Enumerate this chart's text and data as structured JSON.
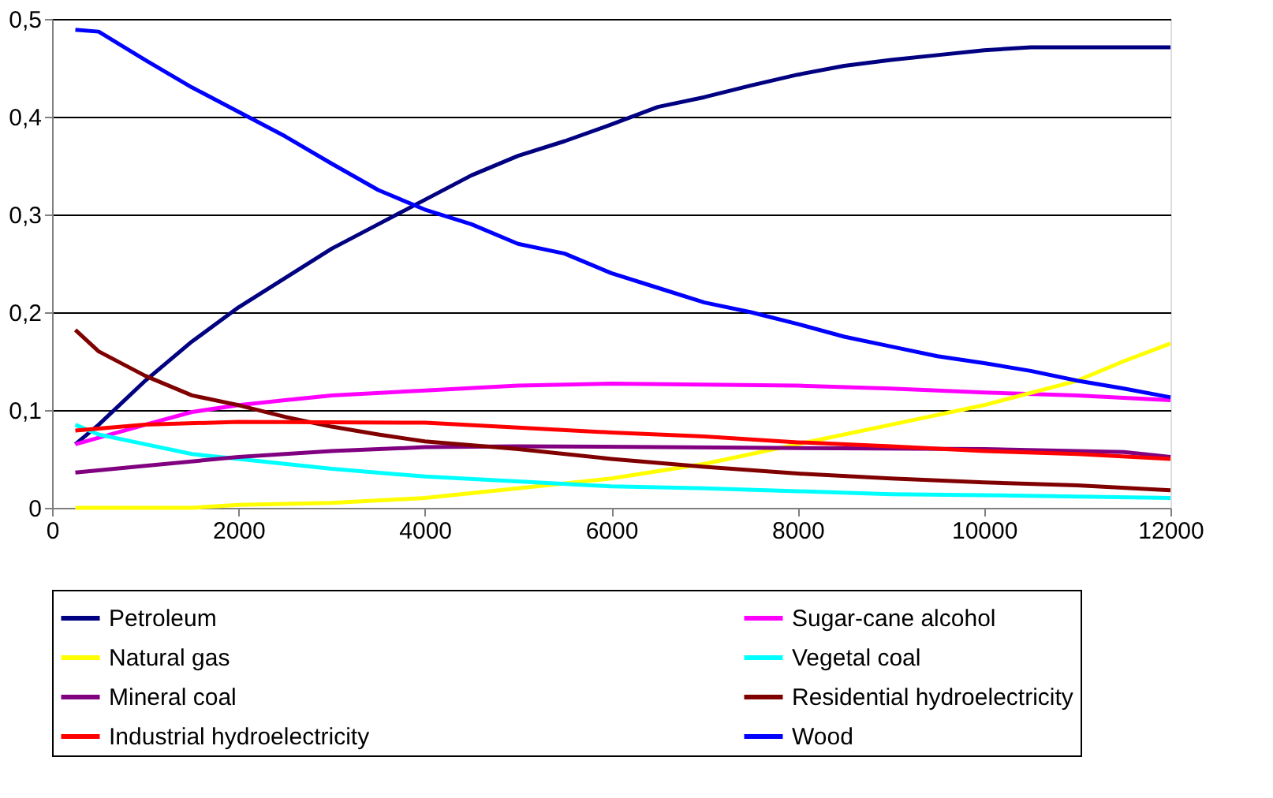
{
  "chart_data": {
    "type": "line",
    "xlim": [
      0,
      12000
    ],
    "xticks": [
      0,
      2000,
      4000,
      6000,
      8000,
      10000,
      12000
    ],
    "ylim": [
      0,
      0.5
    ],
    "yticks": [
      {
        "value": 0,
        "label": "0"
      },
      {
        "value": 0.1,
        "label": "0,1"
      },
      {
        "value": 0.2,
        "label": "0,2"
      },
      {
        "value": 0.3,
        "label": "0,3"
      },
      {
        "value": 0.4,
        "label": "0,4"
      },
      {
        "value": 0.5,
        "label": "0,5"
      }
    ],
    "grid": "y",
    "legend": "bottom",
    "marker": "none",
    "line_style": "solid",
    "series": [
      {
        "name": "Petroleum",
        "color": "#000080",
        "x": [
          250,
          500,
          1000,
          1500,
          2000,
          2500,
          3000,
          3500,
          4000,
          4500,
          5000,
          5500,
          6000,
          6500,
          7000,
          7500,
          8000,
          8500,
          9000,
          9500,
          10000,
          10500,
          11000,
          12000
        ],
        "values": [
          0.065,
          0.085,
          0.13,
          0.17,
          0.205,
          0.235,
          0.265,
          0.29,
          0.315,
          0.34,
          0.36,
          0.375,
          0.392,
          0.41,
          0.42,
          0.432,
          0.443,
          0.452,
          0.458,
          0.463,
          0.468,
          0.471,
          0.471,
          0.471
        ]
      },
      {
        "name": "Sugar-cane alcohol",
        "color": "#ff00ff",
        "x": [
          250,
          1000,
          1500,
          2000,
          2500,
          3000,
          4000,
          5000,
          6000,
          8000,
          9000,
          10000,
          11000,
          12000
        ],
        "values": [
          0.065,
          0.085,
          0.098,
          0.105,
          0.11,
          0.115,
          0.12,
          0.125,
          0.127,
          0.125,
          0.122,
          0.118,
          0.115,
          0.11
        ]
      },
      {
        "name": "Natural gas",
        "color": "#ffff00",
        "x": [
          250,
          1500,
          2000,
          3000,
          4000,
          5000,
          6000,
          7000,
          8000,
          9000,
          10000,
          11000,
          11500,
          12000
        ],
        "values": [
          0,
          0,
          0.003,
          0.005,
          0.01,
          0.02,
          0.03,
          0.045,
          0.065,
          0.085,
          0.105,
          0.13,
          0.15,
          0.168
        ]
      },
      {
        "name": "Vegetal coal",
        "color": "#00ffff",
        "x": [
          250,
          500,
          1000,
          1500,
          2000,
          3000,
          4000,
          5000,
          6000,
          7000,
          8000,
          9000,
          10000,
          12000
        ],
        "values": [
          0.085,
          0.075,
          0.065,
          0.055,
          0.05,
          0.04,
          0.032,
          0.027,
          0.022,
          0.02,
          0.017,
          0.014,
          0.013,
          0.01
        ]
      },
      {
        "name": "Mineral coal",
        "color": "#800080",
        "x": [
          250,
          1000,
          2000,
          3000,
          4000,
          5000,
          10000,
          11500,
          12000
        ],
        "values": [
          0.036,
          0.043,
          0.052,
          0.058,
          0.062,
          0.063,
          0.06,
          0.057,
          0.052
        ]
      },
      {
        "name": "Residential hydroelectricity",
        "color": "#800000",
        "x": [
          250,
          500,
          1000,
          1500,
          2000,
          2500,
          3000,
          3500,
          4000,
          5000,
          6000,
          7000,
          8000,
          9000,
          10000,
          11000,
          12000
        ],
        "values": [
          0.182,
          0.16,
          0.135,
          0.115,
          0.105,
          0.093,
          0.083,
          0.075,
          0.068,
          0.06,
          0.05,
          0.042,
          0.035,
          0.03,
          0.026,
          0.023,
          0.018
        ]
      },
      {
        "name": "Industrial hydroelectricity",
        "color": "#ff0000",
        "x": [
          250,
          1000,
          2000,
          4000,
          5000,
          6000,
          7000,
          8000,
          9000,
          10000,
          11000,
          12000
        ],
        "values": [
          0.079,
          0.085,
          0.088,
          0.087,
          0.082,
          0.077,
          0.073,
          0.067,
          0.063,
          0.058,
          0.055,
          0.05
        ]
      },
      {
        "name": "Wood",
        "color": "#0000ff",
        "x": [
          250,
          500,
          1000,
          1500,
          2000,
          2500,
          3000,
          3500,
          4000,
          4500,
          5000,
          5500,
          6000,
          6500,
          7000,
          7500,
          8000,
          8500,
          9000,
          9500,
          10000,
          10500,
          11000,
          11500,
          12000
        ],
        "values": [
          0.489,
          0.487,
          0.458,
          0.43,
          0.405,
          0.38,
          0.352,
          0.325,
          0.305,
          0.29,
          0.27,
          0.26,
          0.24,
          0.225,
          0.21,
          0.2,
          0.188,
          0.175,
          0.165,
          0.155,
          0.148,
          0.14,
          0.13,
          0.122,
          0.113
        ]
      }
    ]
  }
}
